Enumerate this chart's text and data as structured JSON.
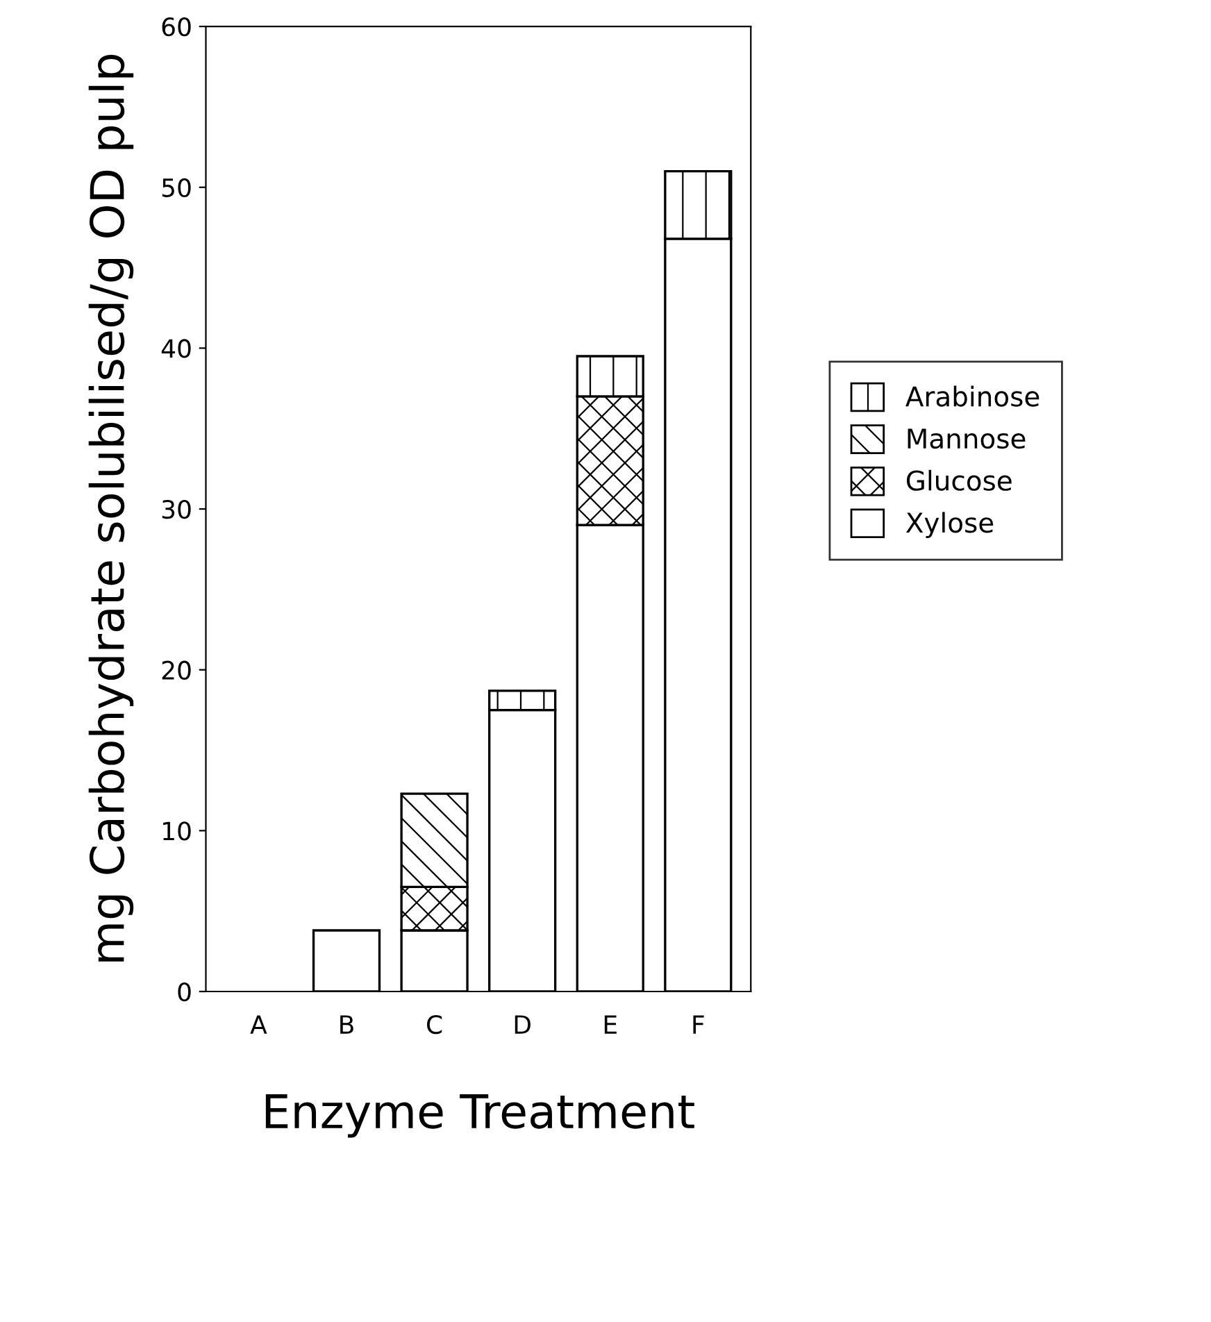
{
  "chart_data": {
    "type": "bar",
    "stacked": true,
    "xlabel": "Enzyme Treatment",
    "ylabel": "mg Carbohydrate solubilised/g OD pulp",
    "categories": [
      "A",
      "B",
      "C",
      "D",
      "E",
      "F"
    ],
    "series": [
      {
        "name": "Xylose",
        "color": "#ffffff",
        "values": [
          0,
          3.8,
          3.8,
          17.5,
          29,
          46.8
        ]
      },
      {
        "name": "Glucose",
        "color": "#ffffff",
        "values": [
          0,
          0,
          2.7,
          0,
          8,
          0
        ]
      },
      {
        "name": "Mannose",
        "color": "#ffffff",
        "values": [
          0,
          0,
          5.8,
          0,
          0,
          0
        ]
      },
      {
        "name": "Arabinose",
        "color": "#ffffff",
        "values": [
          0,
          0,
          0,
          1.2,
          2.5,
          4.2
        ]
      }
    ],
    "ylim": [
      0,
      60
    ],
    "yticks": [
      0,
      10,
      20,
      30,
      40,
      50,
      60
    ],
    "grid": false,
    "legend": "right"
  }
}
